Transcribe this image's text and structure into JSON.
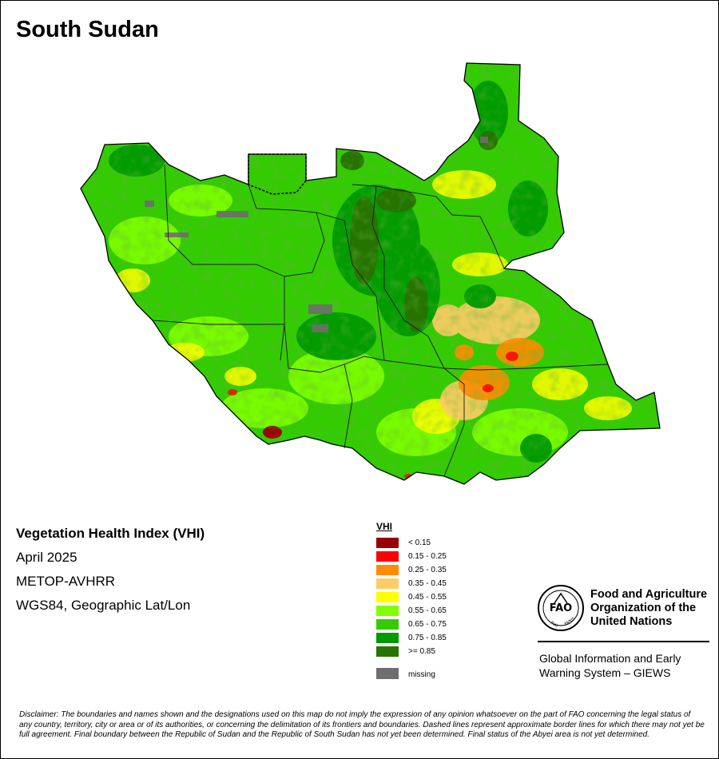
{
  "header": {
    "title": "South Sudan"
  },
  "info": {
    "title": "Vegetation Health Index (VHI)",
    "date": "April 2025",
    "sensor": "METOP-AVHRR",
    "projection": "WGS84, Geographic Lat/Lon"
  },
  "legend": {
    "title": "VHI",
    "items": [
      {
        "label": "< 0.15",
        "color": "#990000"
      },
      {
        "label": "0.15 - 0.25",
        "color": "#ff0000"
      },
      {
        "label": "0.25 - 0.35",
        "color": "#ff8c00"
      },
      {
        "label": "0.35 - 0.45",
        "color": "#ffcc66"
      },
      {
        "label": "0.45 - 0.55",
        "color": "#ffff00"
      },
      {
        "label": "0.55 - 0.65",
        "color": "#80ff00"
      },
      {
        "label": "0.65 - 0.75",
        "color": "#33cc00"
      },
      {
        "label": "0.75 - 0.85",
        "color": "#009900"
      },
      {
        "label": ">= 0.85",
        "color": "#267300"
      }
    ],
    "missing": {
      "label": "missing",
      "color": "#6e6e6e"
    }
  },
  "organization": {
    "line1": "Food and Agriculture",
    "line2": "Organization of the",
    "line3": "United Nations",
    "logo_text": "FAO",
    "logo_motto_left": "FIAT",
    "logo_motto_right": "PANIS"
  },
  "system": {
    "line1": "Global Information and Early",
    "line2": "Warning System – GIEWS"
  },
  "disclaimer": "Disclaimer: The boundaries and names shown and the designations used on this map do not imply the expression of any opinion whatsoever on the part of FAO concerning the legal status of any country, territory, city or area or of its authorities, or concerning the delimitation of its frontiers and boundaries. Dashed lines represent approximate border lines for which there may not yet be full agreement.  Final boundary between the Republic of Sudan and the Republic of South Sudan has not yet been determined. Final status of the Abyei area is not yet determined."
}
